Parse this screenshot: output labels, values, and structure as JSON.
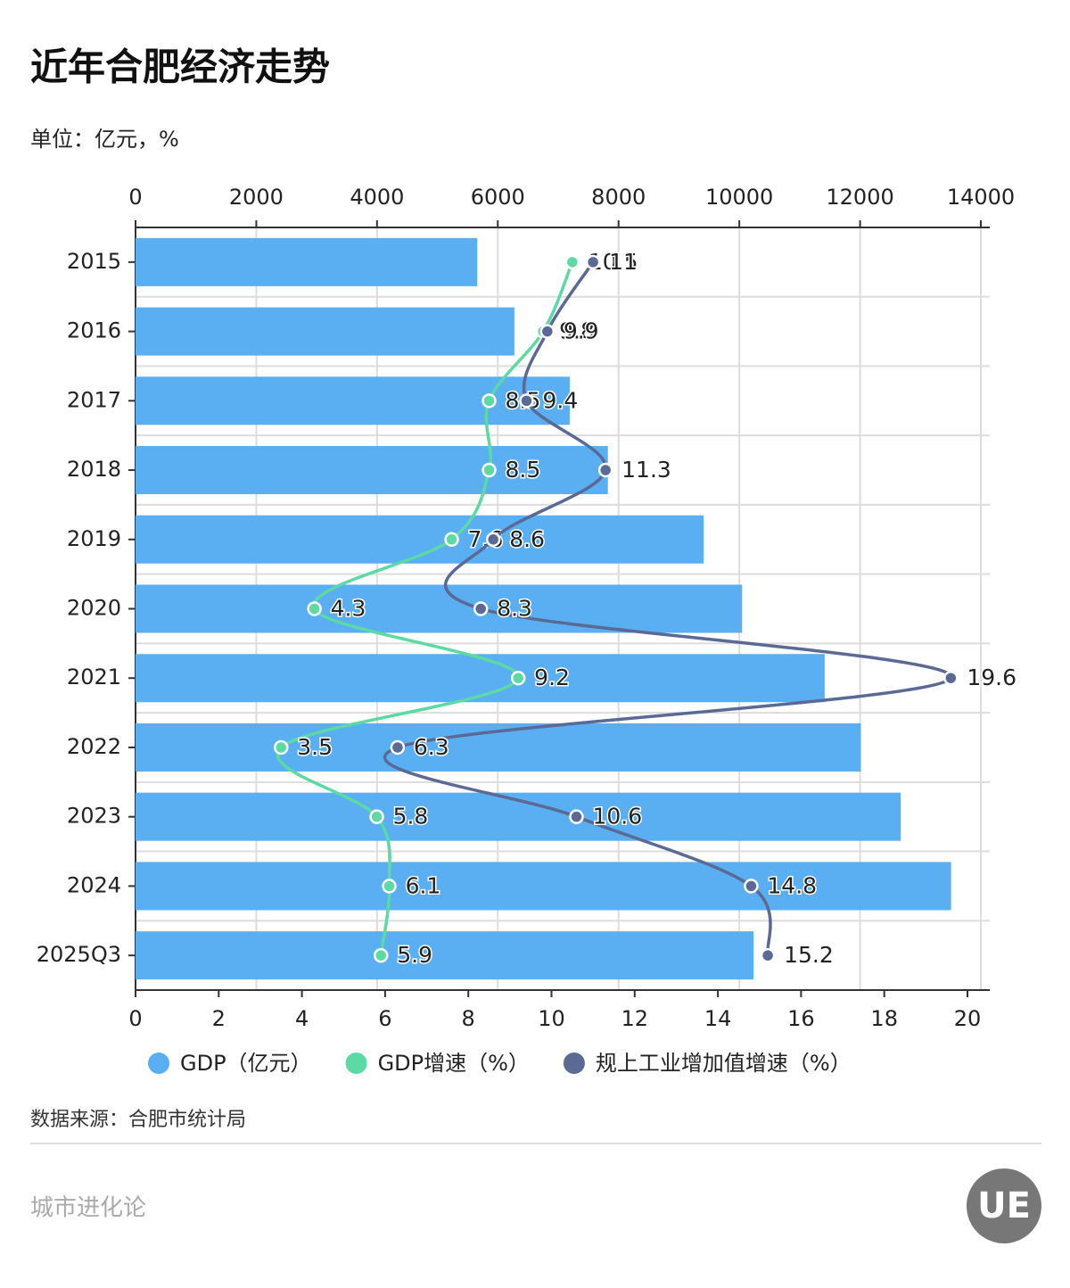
{
  "header": {
    "title": "近年合肥经济走势",
    "unit": "单位：亿元，%"
  },
  "chart_data": {
    "type": "bar-line",
    "categories": [
      "2015",
      "2016",
      "2017",
      "2018",
      "2019",
      "2020",
      "2021",
      "2022",
      "2023",
      "2024",
      "2025Q3"
    ],
    "series": [
      {
        "name": "GDP（亿元）",
        "color": "#5aaef2",
        "type": "bar",
        "axis": "x",
        "values": [
          5660,
          6274,
          7191,
          7823,
          9409,
          10046,
          11413,
          12013,
          12674,
          13507,
          10236
        ]
      },
      {
        "name": "GDP增速（%）",
        "color": "#5dd9a4",
        "type": "line",
        "axis": "x2",
        "values": [
          10.5,
          9.8,
          8.5,
          8.5,
          7.6,
          4.3,
          9.2,
          3.5,
          5.8,
          6.1,
          5.9
        ]
      },
      {
        "name": "规上工业增加值增速（%）",
        "color": "#5a6a94",
        "type": "line",
        "axis": "x2",
        "values": [
          11,
          9.9,
          9.4,
          11.3,
          8.6,
          8.3,
          19.6,
          6.3,
          10.6,
          14.8,
          15.2
        ]
      }
    ],
    "xlim": [
      0,
      14000
    ],
    "xticks": [
      0,
      2000,
      4000,
      6000,
      8000,
      10000,
      12000,
      14000
    ],
    "x2lim": [
      0,
      20
    ],
    "x2ticks": [
      0,
      2,
      4,
      6,
      8,
      10,
      12,
      14,
      16,
      18,
      20
    ],
    "grid": true
  },
  "footer": {
    "source": "数据来源：合肥市统计局",
    "brand": "城市进化论",
    "logo": "UE"
  }
}
